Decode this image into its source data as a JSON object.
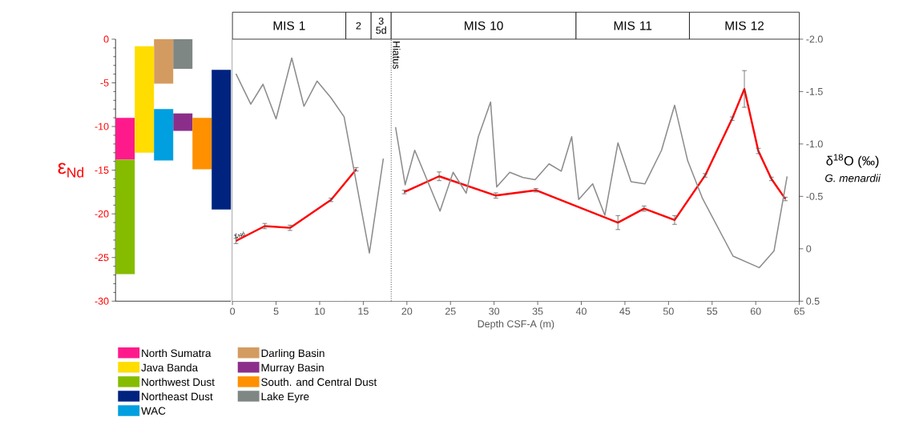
{
  "chart_data": [
    {
      "type": "bar",
      "categories": [
        null,
        null,
        null,
        null,
        null,
        null
      ],
      "ylabel": "ε$_{Nd}$",
      "ylim": [
        -30,
        0
      ],
      "yticks": [
        -30,
        -25,
        -20,
        -15,
        -10,
        -5,
        0
      ],
      "tick_labels": "y",
      "legend": "bottom right",
      "series": [
        {
          "name": "North Sumatra",
          "color": "#ff1a8c",
          "values": [
            4.8,
            null,
            null,
            null,
            null,
            null
          ],
          "base": [
            -13.8,
            null,
            null,
            null,
            null,
            null
          ]
        },
        {
          "name": "Java Banda",
          "color": "#ffdd00",
          "values": [
            null,
            12.2,
            null,
            null,
            null,
            null
          ],
          "base": [
            null,
            -13.0,
            null,
            null,
            null,
            null
          ]
        },
        {
          "name": "Northwest Dust",
          "color": "#86bc00",
          "values": [
            13.1,
            null,
            null,
            null,
            null,
            null
          ],
          "base": [
            -26.9,
            null,
            null,
            null,
            null,
            null
          ]
        },
        {
          "name": "Northeast Dust",
          "color": "#00237f",
          "values": [
            null,
            null,
            null,
            null,
            null,
            16.0
          ],
          "base": [
            null,
            null,
            null,
            null,
            null,
            -19.5
          ]
        },
        {
          "name": "WAC",
          "color": "#009fe0",
          "values": [
            null,
            null,
            5.9,
            null,
            null,
            null
          ],
          "base": [
            null,
            null,
            -13.9,
            null,
            null,
            null
          ]
        },
        {
          "name": "Darling Basin",
          "color": "#d49b60",
          "values": [
            null,
            null,
            5.1,
            null,
            null,
            null
          ],
          "base": [
            null,
            null,
            -5.1,
            null,
            null,
            null
          ]
        },
        {
          "name": "Murray Basin",
          "color": "#8b2e8a",
          "values": [
            null,
            null,
            null,
            2.0,
            null,
            null
          ],
          "base": [
            null,
            null,
            null,
            -10.5,
            null,
            null
          ]
        },
        {
          "name": "South. and Central Dust",
          "color": "#ff9000",
          "values": [
            null,
            null,
            null,
            null,
            5.9,
            null
          ],
          "base": [
            null,
            null,
            null,
            null,
            -14.9,
            null
          ]
        },
        {
          "name": "Lake Eyre",
          "color": "#7f8784",
          "values": [
            null,
            null,
            null,
            3.4,
            null,
            null
          ],
          "base": [
            null,
            null,
            null,
            -3.4,
            null,
            null
          ]
        }
      ]
    },
    {
      "type": "line",
      "xlabel": "Depth CSF-A (m)",
      "y2label": "δ$^{18}$O (‰)",
      "annotations": [
        "G. menardii"
      ],
      "xlim": [
        0,
        65
      ],
      "xticks": [
        0,
        5,
        10,
        15,
        20,
        25,
        30,
        35,
        40,
        45,
        50,
        55,
        60,
        65
      ],
      "ylim": [
        -30,
        0
      ],
      "y2lim": [
        0.5,
        -2.0
      ],
      "y2ticks": [
        {
          "value": -2.0,
          "label": "-2.0"
        },
        {
          "value": -1.5,
          "label": "-1.5"
        },
        {
          "value": -1.0,
          "label": "-1.0"
        },
        {
          "value": -0.5,
          "label": "-0.5"
        },
        0,
        0.5
      ],
      "tick_labels": [
        "x",
        "y2"
      ],
      "bands": [
        {
          "axis": "x",
          "from": 0,
          "to": 13.0,
          "label": "MIS 1",
          "color": "#ffffff"
        },
        {
          "axis": "x",
          "from": 13.0,
          "to": 15.9,
          "label": "2",
          "color": "#ffffff"
        },
        {
          "axis": "x",
          "from": 15.9,
          "to": 18.2,
          "label": "3 5d",
          "color": "#ffffff"
        },
        {
          "axis": "x",
          "from": 18.2,
          "to": 39.4,
          "label": "MIS 10",
          "color": "#ffffff"
        },
        {
          "axis": "x",
          "from": 39.4,
          "to": 52.4,
          "label": "MIS 11",
          "color": "#ffffff"
        },
        {
          "axis": "x",
          "from": 52.4,
          "to": 65,
          "label": "MIS 12",
          "color": "#ffffff"
        }
      ],
      "ref_lines": [
        {
          "axis": "x",
          "value": 18.2,
          "label": "Hiatus",
          "line_style": "dotted"
        }
      ],
      "series": [
        {
          "name": "ε$_{Nd}$",
          "color": "#ff0000",
          "axis": "y",
          "x": [
            0.4,
            3.7,
            6.6,
            11.3,
            14.2,
            18.2,
            19.7,
            23.7,
            30.2,
            34.8,
            44.2,
            47.2,
            50.7,
            54.2,
            57.3,
            58.7,
            60.3,
            61.8,
            63.4
          ],
          "values": [
            -23.1,
            -21.4,
            -21.6,
            -18.4,
            -14.9,
            null,
            -17.5,
            -15.7,
            -17.9,
            -17.3,
            -21.0,
            -19.4,
            -20.7,
            -15.6,
            -9.1,
            -5.7,
            -12.8,
            -16.0,
            -18.3
          ],
          "errors": [
            0.3,
            0.3,
            0.3,
            0.2,
            0.2,
            null,
            0.2,
            0.5,
            0.3,
            0.2,
            0.8,
            0.3,
            0.5,
            0.2,
            0.2,
            2.1,
            0.3,
            0.2,
            0.2
          ]
        },
        {
          "color": "#8c8c8c",
          "axis": "y2",
          "x": [
            0.4,
            2.1,
            3.5,
            5.0,
            6.8,
            8.2,
            9.7,
            11.3,
            12.8,
            15.7,
            17.3,
            18.2,
            18.7,
            19.8,
            20.9,
            23.8,
            25.3,
            26.8,
            28.2,
            29.6,
            30.3,
            31.8,
            33.3,
            34.7,
            36.3,
            37.7,
            38.9,
            39.7,
            41.3,
            42.7,
            44.2,
            45.7,
            47.3,
            49.2,
            50.7,
            52.2,
            53.9,
            57.4,
            60.4,
            62.1,
            63.6
          ],
          "values": [
            -1.67,
            -1.38,
            -1.57,
            -1.24,
            -1.82,
            -1.36,
            -1.6,
            -1.44,
            -1.26,
            0.04,
            -0.86,
            null,
            -1.16,
            -0.61,
            -0.94,
            -0.36,
            -0.73,
            -0.53,
            -1.07,
            -1.4,
            -0.59,
            -0.73,
            -0.68,
            -0.66,
            -0.81,
            -0.74,
            -1.07,
            -0.47,
            -0.62,
            -0.32,
            -1.01,
            -0.64,
            -0.62,
            -0.94,
            -1.37,
            -0.84,
            -0.48,
            0.07,
            0.18,
            0.02,
            -0.69
          ]
        }
      ]
    }
  ]
}
